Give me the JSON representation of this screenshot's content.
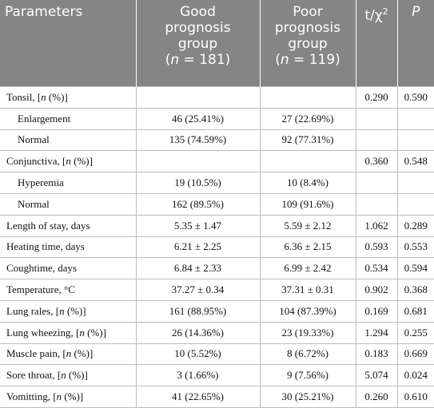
{
  "header": [
    [
      "Parameters"
    ],
    [
      "Good",
      "prognosis",
      "group",
      [
        "(",
        "n",
        " = 181)"
      ]
    ],
    [
      "Poor",
      "prognosis",
      "group",
      [
        "(",
        "n",
        " = 119)"
      ]
    ],
    [
      [
        "t/χ",
        "2"
      ]
    ],
    [
      "P"
    ]
  ],
  "rows": [
    {
      "cells": [
        [
          "Tonsil, [",
          "n",
          " (%)]"
        ],
        null,
        null,
        "0.290",
        "0.590"
      ]
    },
    {
      "cells": [
        "Enlargement",
        "46 (25.41%)",
        "27 (22.69%)",
        null,
        null
      ],
      "indent": true
    },
    {
      "cells": [
        "Normal",
        "135 (74.59%)",
        "92 (77.31%)",
        null,
        null
      ],
      "indent": true
    },
    {
      "cells": [
        [
          "Conjunctiva, [",
          "n",
          " (%)]"
        ],
        null,
        null,
        "0.360",
        "0.548"
      ]
    },
    {
      "cells": [
        "Hyperemia",
        "19 (10.5%)",
        "10 (8.4%)",
        null,
        null
      ],
      "indent": true
    },
    {
      "cells": [
        "Normal",
        "162 (89.5%)",
        "109 (91.6%)",
        null,
        null
      ],
      "indent": true
    },
    {
      "cells": [
        "Length of stay, days",
        "5.35 ± 1.47",
        "5.59 ± 2.12",
        "1.062",
        "0.289"
      ]
    },
    {
      "cells": [
        "Heating time, days",
        "6.21 ± 2.25",
        "6.36 ± 2.15",
        "0.593",
        "0.553"
      ]
    },
    {
      "cells": [
        "Coughtime, days",
        "6.84 ± 2.33",
        "6.99 ± 2.42",
        "0.534",
        "0.594"
      ]
    },
    {
      "cells": [
        "Temperature, °C",
        "37.27 ± 0.34",
        "37.31 ± 0.31",
        "0.902",
        "0.368"
      ]
    },
    {
      "cells": [
        [
          "Lung rales, [",
          "n",
          " (%)]"
        ],
        "161 (88.95%)",
        "104 (87.39%)",
        "0.169",
        "0.681"
      ]
    },
    {
      "cells": [
        [
          "Lung wheezing, [",
          "n",
          " (%)]"
        ],
        "26 (14.36%)",
        "23 (19.33%)",
        "1.294",
        "0.255"
      ]
    },
    {
      "cells": [
        [
          "Muscle pain, [",
          "n",
          " (%)]"
        ],
        "10 (5.52%)",
        "8 (6.72%)",
        "0.183",
        "0.669"
      ]
    },
    {
      "cells": [
        [
          "Sore throat, [",
          "n",
          " (%)]"
        ],
        "3 (1.66%)",
        "9 (7.56%)",
        "5.074",
        "0.024"
      ]
    },
    {
      "cells": [
        [
          "Vomitting, [",
          "n",
          " (%)]"
        ],
        "41 (22.65%)",
        "30 (25.21%)",
        "0.260",
        "0.610"
      ]
    }
  ]
}
